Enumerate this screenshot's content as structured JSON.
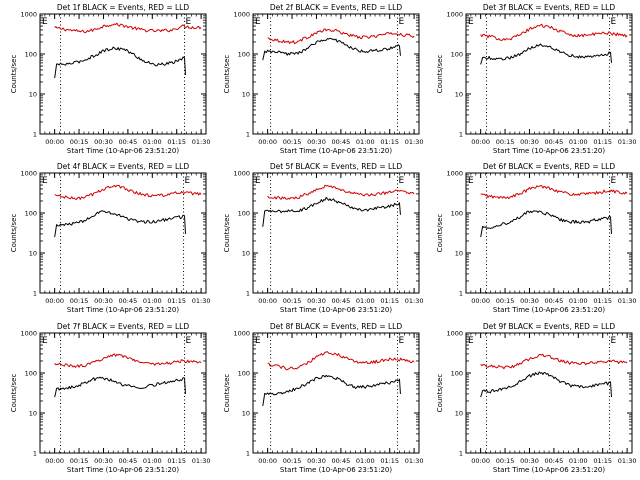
{
  "figure": {
    "background": "#ffffff",
    "axis_color": "#000000"
  },
  "chart_data": [
    {
      "type": "line",
      "title": "Det 1f BLACK = Events, RED = LLD",
      "xlabel": "Start Time (10-Apr-06 23:51:20)",
      "ylabel": "Counts/sec",
      "yscale": "log",
      "ylim": [
        1,
        1000
      ],
      "yticks": [
        "1",
        "10",
        "100",
        "1000"
      ],
      "x_ticklabels": [
        "00:00",
        "00:15",
        "00:30",
        "00:45",
        "01:00",
        "01:15",
        "01:30"
      ],
      "xlim": [
        -0.15,
        1.55
      ],
      "vlines": [
        0.06,
        1.33
      ],
      "flags": [
        "E",
        "E"
      ],
      "series": [
        {
          "color": "#d00000",
          "x": [
            0,
            0.1,
            0.2,
            0.3,
            0.4,
            0.5,
            0.6,
            0.7,
            0.8,
            0.9,
            1.0,
            1.1,
            1.2,
            1.25,
            1.3,
            1.35,
            1.4,
            1.5
          ],
          "y": [
            450,
            420,
            380,
            360,
            400,
            500,
            560,
            520,
            450,
            400,
            380,
            380,
            400,
            440,
            500,
            480,
            470,
            460
          ]
        },
        {
          "color": "#000000",
          "x": [
            0.0,
            0.02,
            0.06,
            0.1,
            0.2,
            0.3,
            0.4,
            0.5,
            0.6,
            0.7,
            0.8,
            0.9,
            1.0,
            1.1,
            1.2,
            1.3,
            1.33,
            1.34
          ],
          "y": [
            25,
            55,
            55,
            55,
            60,
            70,
            90,
            120,
            140,
            135,
            100,
            70,
            55,
            55,
            60,
            75,
            80,
            30
          ]
        }
      ]
    },
    {
      "type": "line",
      "title": "Det 2f BLACK = Events, RED = LLD",
      "xlabel": "Start Time (10-Apr-06 23:51:20)",
      "ylabel": "Counts/sec",
      "yscale": "log",
      "ylim": [
        1,
        1000
      ],
      "yticks": [
        "1",
        "10",
        "100",
        "1000"
      ],
      "x_ticklabels": [
        "00:00",
        "00:15",
        "00:30",
        "00:45",
        "01:00",
        "01:15",
        "01:30"
      ],
      "xlim": [
        -0.15,
        1.55
      ],
      "vlines": [
        0.03,
        1.33
      ],
      "flags": [
        "E",
        "E"
      ],
      "series": [
        {
          "color": "#d00000",
          "x": [
            0,
            0.1,
            0.2,
            0.3,
            0.4,
            0.5,
            0.6,
            0.7,
            0.8,
            0.9,
            1.0,
            1.1,
            1.2,
            1.3,
            1.4,
            1.5
          ],
          "y": [
            250,
            220,
            200,
            200,
            260,
            340,
            400,
            380,
            320,
            270,
            260,
            280,
            310,
            330,
            300,
            280
          ]
        },
        {
          "color": "#000000",
          "x": [
            -0.05,
            -0.03,
            0.0,
            0.1,
            0.2,
            0.3,
            0.4,
            0.5,
            0.6,
            0.7,
            0.8,
            0.9,
            1.0,
            1.1,
            1.2,
            1.3,
            1.35,
            1.36
          ],
          "y": [
            70,
            115,
            115,
            110,
            100,
            105,
            130,
            200,
            240,
            220,
            170,
            130,
            115,
            120,
            130,
            145,
            160,
            90
          ]
        }
      ]
    },
    {
      "type": "line",
      "title": "Det 3f BLACK = Events, RED = LLD",
      "xlabel": "Start Time (10-Apr-06 23:51:20)",
      "ylabel": "Counts/sec",
      "yscale": "log",
      "ylim": [
        1,
        1000
      ],
      "yticks": [
        "1",
        "10",
        "100",
        "1000"
      ],
      "x_ticklabels": [
        "00:00",
        "00:15",
        "00:30",
        "00:45",
        "01:00",
        "01:15",
        "01:30"
      ],
      "xlim": [
        -0.15,
        1.55
      ],
      "vlines": [
        0.06,
        1.32
      ],
      "flags": [
        "E",
        "E"
      ],
      "series": [
        {
          "color": "#d00000",
          "x": [
            0,
            0.1,
            0.2,
            0.3,
            0.4,
            0.5,
            0.6,
            0.7,
            0.8,
            0.9,
            1.0,
            1.1,
            1.2,
            1.3,
            1.4,
            1.5
          ],
          "y": [
            300,
            270,
            240,
            240,
            300,
            420,
            520,
            480,
            380,
            310,
            290,
            300,
            320,
            340,
            310,
            290
          ]
        },
        {
          "color": "#000000",
          "x": [
            0.0,
            0.02,
            0.06,
            0.1,
            0.2,
            0.3,
            0.4,
            0.5,
            0.6,
            0.7,
            0.8,
            0.9,
            1.0,
            1.1,
            1.2,
            1.3,
            1.33,
            1.34
          ],
          "y": [
            55,
            80,
            80,
            80,
            75,
            80,
            100,
            140,
            170,
            160,
            120,
            95,
            85,
            85,
            90,
            100,
            110,
            60
          ]
        }
      ]
    },
    {
      "type": "line",
      "title": "Det 4f BLACK = Events, RED = LLD",
      "xlabel": "Start Time (10-Apr-06 23:51:20)",
      "ylabel": "Counts/sec",
      "yscale": "log",
      "ylim": [
        1,
        1000
      ],
      "yticks": [
        "1",
        "10",
        "100",
        "1000"
      ],
      "x_ticklabels": [
        "00:00",
        "00:15",
        "00:30",
        "00:45",
        "01:00",
        "01:15",
        "01:30"
      ],
      "xlim": [
        -0.15,
        1.55
      ],
      "vlines": [
        0.06,
        1.32
      ],
      "flags": [
        "E",
        "E"
      ],
      "series": [
        {
          "color": "#d00000",
          "x": [
            0,
            0.1,
            0.2,
            0.3,
            0.4,
            0.5,
            0.6,
            0.7,
            0.8,
            0.9,
            1.0,
            1.1,
            1.2,
            1.3,
            1.4,
            1.5
          ],
          "y": [
            280,
            250,
            230,
            240,
            300,
            400,
            480,
            430,
            350,
            290,
            270,
            280,
            300,
            330,
            310,
            290
          ]
        },
        {
          "color": "#000000",
          "x": [
            0.0,
            0.02,
            0.06,
            0.1,
            0.2,
            0.3,
            0.4,
            0.5,
            0.6,
            0.7,
            0.8,
            0.9,
            1.0,
            1.1,
            1.2,
            1.3,
            1.33,
            1.34
          ],
          "y": [
            25,
            50,
            50,
            50,
            55,
            65,
            90,
            110,
            100,
            80,
            65,
            60,
            60,
            65,
            75,
            80,
            85,
            30
          ]
        }
      ]
    },
    {
      "type": "line",
      "title": "Det 5f BLACK = Events, RED = LLD",
      "xlabel": "Start Time (10-Apr-06 23:51:20)",
      "ylabel": "Counts/sec",
      "yscale": "log",
      "ylim": [
        1,
        1000
      ],
      "yticks": [
        "1",
        "10",
        "100",
        "1000"
      ],
      "x_ticklabels": [
        "00:00",
        "00:15",
        "00:30",
        "00:45",
        "01:00",
        "01:15",
        "01:30"
      ],
      "xlim": [
        -0.15,
        1.55
      ],
      "vlines": [
        0.03,
        1.33
      ],
      "flags": [
        "E",
        "E"
      ],
      "series": [
        {
          "color": "#d00000",
          "x": [
            0,
            0.1,
            0.2,
            0.3,
            0.4,
            0.5,
            0.6,
            0.7,
            0.8,
            0.9,
            1.0,
            1.1,
            1.2,
            1.3,
            1.4,
            1.5
          ],
          "y": [
            260,
            240,
            230,
            240,
            300,
            400,
            480,
            430,
            350,
            300,
            280,
            290,
            320,
            360,
            330,
            300
          ]
        },
        {
          "color": "#000000",
          "x": [
            -0.05,
            -0.03,
            0.0,
            0.1,
            0.2,
            0.3,
            0.4,
            0.5,
            0.6,
            0.7,
            0.8,
            0.9,
            1.0,
            1.1,
            1.2,
            1.3,
            1.35,
            1.36
          ],
          "y": [
            45,
            110,
            110,
            110,
            110,
            115,
            130,
            180,
            230,
            200,
            160,
            130,
            120,
            130,
            140,
            160,
            180,
            90
          ]
        }
      ]
    },
    {
      "type": "line",
      "title": "Det 6f BLACK = Events, RED = LLD",
      "xlabel": "Start Time (10-Apr-06 23:51:20)",
      "ylabel": "Counts/sec",
      "yscale": "log",
      "ylim": [
        1,
        1000
      ],
      "yticks": [
        "1",
        "10",
        "100",
        "1000"
      ],
      "x_ticklabels": [
        "00:00",
        "00:15",
        "00:30",
        "00:45",
        "01:00",
        "01:15",
        "01:30"
      ],
      "xlim": [
        -0.15,
        1.55
      ],
      "vlines": [
        0.06,
        1.32
      ],
      "flags": [
        "E",
        "E"
      ],
      "series": [
        {
          "color": "#d00000",
          "x": [
            0,
            0.1,
            0.2,
            0.3,
            0.4,
            0.5,
            0.6,
            0.7,
            0.8,
            0.9,
            1.0,
            1.1,
            1.2,
            1.3,
            1.4,
            1.5
          ],
          "y": [
            290,
            260,
            240,
            250,
            300,
            400,
            470,
            430,
            350,
            300,
            290,
            300,
            320,
            360,
            340,
            310
          ]
        },
        {
          "color": "#000000",
          "x": [
            0.0,
            0.02,
            0.06,
            0.1,
            0.2,
            0.3,
            0.4,
            0.5,
            0.6,
            0.7,
            0.8,
            0.9,
            1.0,
            1.1,
            1.2,
            1.3,
            1.33,
            1.34
          ],
          "y": [
            25,
            45,
            45,
            45,
            50,
            60,
            80,
            110,
            110,
            90,
            70,
            60,
            60,
            60,
            70,
            75,
            80,
            30
          ]
        }
      ]
    },
    {
      "type": "line",
      "title": "Det 7f BLACK = Events, RED = LLD",
      "xlabel": "Start Time (10-Apr-06 23:51:20)",
      "ylabel": "Counts/sec",
      "yscale": "log",
      "ylim": [
        1,
        1000
      ],
      "yticks": [
        "1",
        "10",
        "100",
        "1000"
      ],
      "x_ticklabels": [
        "00:00",
        "00:15",
        "00:30",
        "00:45",
        "01:00",
        "01:15",
        "01:30"
      ],
      "xlim": [
        -0.15,
        1.55
      ],
      "vlines": [
        0.06,
        1.33
      ],
      "flags": [
        "E",
        "E"
      ],
      "series": [
        {
          "color": "#d00000",
          "x": [
            0,
            0.1,
            0.2,
            0.3,
            0.4,
            0.5,
            0.6,
            0.7,
            0.8,
            0.9,
            1.0,
            1.1,
            1.2,
            1.3,
            1.4,
            1.5
          ],
          "y": [
            170,
            160,
            150,
            150,
            180,
            240,
            290,
            270,
            220,
            180,
            170,
            170,
            180,
            200,
            190,
            180
          ]
        },
        {
          "color": "#000000",
          "x": [
            0.0,
            0.02,
            0.06,
            0.1,
            0.2,
            0.3,
            0.4,
            0.5,
            0.6,
            0.7,
            0.8,
            0.9,
            1.0,
            1.1,
            1.2,
            1.3,
            1.33,
            1.34
          ],
          "y": [
            25,
            40,
            40,
            40,
            45,
            55,
            70,
            75,
            65,
            50,
            45,
            45,
            50,
            55,
            60,
            70,
            75,
            30
          ]
        }
      ]
    },
    {
      "type": "line",
      "title": "Det 8f BLACK = Events, RED = LLD",
      "xlabel": "Start Time (10-Apr-06 23:51:20)",
      "ylabel": "Counts/sec",
      "yscale": "log",
      "ylim": [
        1,
        1000
      ],
      "yticks": [
        "1",
        "10",
        "100",
        "1000"
      ],
      "x_ticklabels": [
        "00:00",
        "00:15",
        "00:30",
        "00:45",
        "01:00",
        "01:15",
        "01:30"
      ],
      "xlim": [
        -0.15,
        1.55
      ],
      "vlines": [
        0.03,
        1.33
      ],
      "flags": [
        "E",
        "E"
      ],
      "series": [
        {
          "color": "#d00000",
          "x": [
            0,
            0.1,
            0.2,
            0.3,
            0.4,
            0.5,
            0.6,
            0.7,
            0.8,
            0.9,
            1.0,
            1.1,
            1.2,
            1.3,
            1.4,
            1.5
          ],
          "y": [
            170,
            150,
            130,
            130,
            170,
            250,
            330,
            300,
            240,
            190,
            180,
            190,
            210,
            230,
            210,
            190
          ]
        },
        {
          "color": "#000000",
          "x": [
            -0.05,
            -0.03,
            0.0,
            0.1,
            0.2,
            0.3,
            0.4,
            0.5,
            0.6,
            0.7,
            0.8,
            0.9,
            1.0,
            1.1,
            1.2,
            1.3,
            1.35,
            1.36
          ],
          "y": [
            15,
            30,
            30,
            30,
            35,
            40,
            55,
            75,
            85,
            75,
            55,
            45,
            45,
            50,
            55,
            60,
            70,
            30
          ]
        }
      ]
    },
    {
      "type": "line",
      "title": "Det 9f BLACK = Events, RED = LLD",
      "xlabel": "Start Time (10-Apr-06 23:51:20)",
      "ylabel": "Counts/sec",
      "yscale": "log",
      "ylim": [
        1,
        1000
      ],
      "yticks": [
        "1",
        "10",
        "100",
        "1000"
      ],
      "x_ticklabels": [
        "00:00",
        "00:15",
        "00:30",
        "00:45",
        "01:00",
        "01:15",
        "01:30"
      ],
      "xlim": [
        -0.15,
        1.55
      ],
      "vlines": [
        0.06,
        1.32
      ],
      "flags": [
        "E",
        "E"
      ],
      "series": [
        {
          "color": "#d00000",
          "x": [
            0,
            0.1,
            0.2,
            0.3,
            0.4,
            0.5,
            0.6,
            0.7,
            0.8,
            0.9,
            1.0,
            1.1,
            1.2,
            1.3,
            1.4,
            1.5
          ],
          "y": [
            160,
            150,
            140,
            140,
            170,
            230,
            280,
            260,
            210,
            180,
            170,
            175,
            185,
            200,
            190,
            180
          ]
        },
        {
          "color": "#000000",
          "x": [
            0.0,
            0.02,
            0.06,
            0.1,
            0.2,
            0.3,
            0.4,
            0.5,
            0.6,
            0.7,
            0.8,
            0.9,
            1.0,
            1.1,
            1.2,
            1.3,
            1.33,
            1.34
          ],
          "y": [
            25,
            35,
            35,
            35,
            38,
            45,
            60,
            85,
            100,
            90,
            65,
            50,
            45,
            45,
            50,
            55,
            60,
            25
          ]
        }
      ]
    }
  ]
}
